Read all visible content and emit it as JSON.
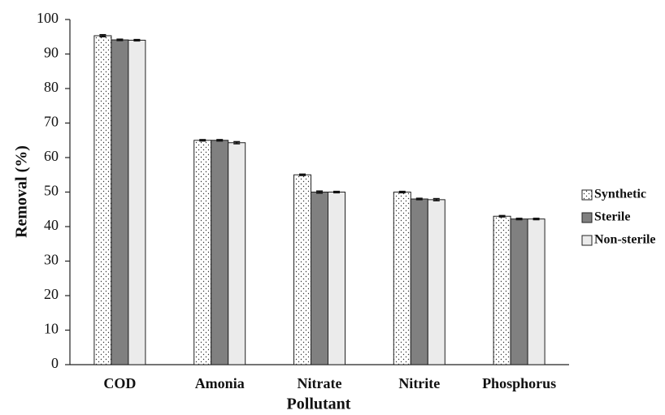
{
  "chart_data": {
    "type": "bar",
    "x_label": "Pollutant",
    "y_label": "Removal (%)",
    "categories": [
      "COD",
      "Amonia",
      "Nitrate",
      "Nitrite",
      "Phosphorus"
    ],
    "series": [
      {
        "name": "Synthetic",
        "color": "#ffffff",
        "pattern": "dots",
        "values": [
          95.3,
          65,
          55,
          50,
          43
        ],
        "errors": [
          0.3,
          0.2,
          0.2,
          0.2,
          0.2
        ]
      },
      {
        "name": "Sterile",
        "color": "#808080",
        "values": [
          94.1,
          65,
          50,
          48,
          42.2
        ],
        "errors": [
          0.2,
          0.2,
          0.3,
          0.2,
          0.2
        ]
      },
      {
        "name": "Non-sterile",
        "color": "#ebebeb",
        "values": [
          94,
          64.3,
          50,
          47.8,
          42.2
        ],
        "errors": [
          0.2,
          0.3,
          0.2,
          0.3,
          0.2
        ]
      }
    ],
    "ylim": [
      0,
      100
    ],
    "yticks": [
      0,
      10,
      20,
      30,
      40,
      50,
      60,
      70,
      80,
      90,
      100
    ],
    "grid": false,
    "legend": "right"
  }
}
